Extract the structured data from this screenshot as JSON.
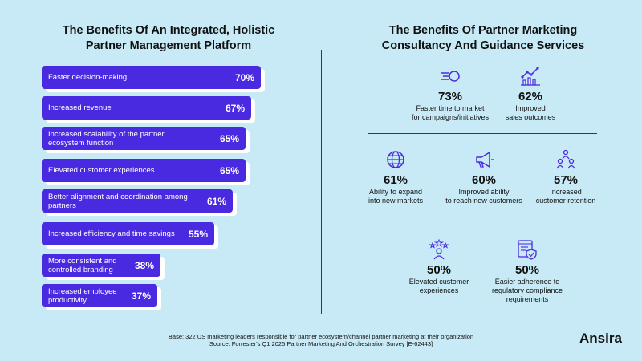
{
  "left": {
    "title_line1": "The Benefits Of An Integrated, Holistic",
    "title_line2": "Partner Management Platform"
  },
  "right": {
    "title_line1": "The Benefits Of Partner Marketing",
    "title_line2": "Consultancy And Guidance Services",
    "stats": [
      {
        "value": "73%",
        "line1": "Faster time to market",
        "line2": "for campaigns/initiatives",
        "line3": "",
        "icon": "speed-icon"
      },
      {
        "value": "62%",
        "line1": "Improved",
        "line2": "sales outcomes",
        "line3": "",
        "icon": "growth-chart-icon"
      },
      {
        "value": "61%",
        "line1": "Ability to expand",
        "line2": "into new markets",
        "line3": "",
        "icon": "globe-icon"
      },
      {
        "value": "60%",
        "line1": "Improved ability",
        "line2": "to reach new customers",
        "line3": "",
        "icon": "megaphone-icon"
      },
      {
        "value": "57%",
        "line1": "Increased",
        "line2": "customer retention",
        "line3": "",
        "icon": "people-group-icon"
      },
      {
        "value": "50%",
        "line1": "Elevated customer",
        "line2": "experiences",
        "line3": "",
        "icon": "stars-person-icon"
      },
      {
        "value": "50%",
        "line1": "Easier adherence to",
        "line2": "regulatory compliance",
        "line3": "requirements",
        "icon": "checklist-shield-icon"
      }
    ]
  },
  "chart_data": {
    "type": "bar",
    "orientation": "horizontal",
    "title": "The Benefits Of An Integrated, Holistic Partner Management Platform",
    "categories": [
      "Faster decision-making",
      "Increased revenue",
      "Increased scalability of the partner ecosystem function",
      "Elevated customer experiences",
      "Better alignment and coordination among partners",
      "Increased efficiency and time savings",
      "More consistent and controlled branding",
      "Increased employee productivity"
    ],
    "values": [
      70,
      67,
      65,
      65,
      61,
      55,
      38,
      37
    ],
    "value_labels": [
      "70%",
      "67%",
      "65%",
      "65%",
      "61%",
      "55%",
      "38%",
      "37%"
    ],
    "bar_color": "#4a2ae0",
    "xlim": [
      0,
      100
    ]
  },
  "footer": {
    "line1": "Base: 322 US marketing leaders responsible for partner ecosystem/channel partner marketing at their organization",
    "line2": "Source: Forrester's Q1 2025 Partner Marketing And Orchestration Survey [E-62443]"
  },
  "logo": "Ansira",
  "colors": {
    "background": "#c7eaf6",
    "accent": "#4a2ae0",
    "shadow": "#ffffff"
  }
}
